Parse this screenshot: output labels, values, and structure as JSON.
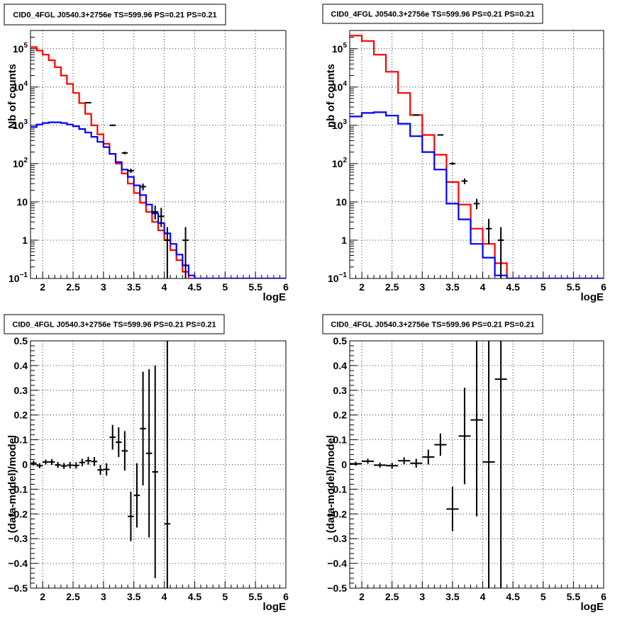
{
  "chart_data": [
    {
      "type": "histogram",
      "title": "CID0_4FGL J0540.3+2756e TS=599.96 PS=0.21 PS=0.21",
      "xlabel": "logE",
      "ylabel": "Nb of counts",
      "xlim": [
        1.8,
        6.0
      ],
      "ylim": [
        0.1,
        300000
      ],
      "yscale": "log",
      "grid": true,
      "xticks": [
        "2",
        "2.5",
        "3",
        "3.5",
        "4",
        "4.5",
        "5",
        "5.5",
        "6"
      ],
      "yticks": [
        {
          "v": 0.1,
          "base": "10",
          "exp": "−1"
        },
        {
          "v": 1,
          "base": "1",
          "exp": ""
        },
        {
          "v": 10,
          "base": "10",
          "exp": ""
        },
        {
          "v": 100,
          "base": "10",
          "exp": "2"
        },
        {
          "v": 1000,
          "base": "10",
          "exp": "3"
        },
        {
          "v": 10000,
          "base": "10",
          "exp": "4"
        },
        {
          "v": 100000,
          "base": "10",
          "exp": "5"
        }
      ],
      "bin_edges": [
        1.8,
        1.9,
        2.0,
        2.1,
        2.2,
        2.3,
        2.4,
        2.5,
        2.6,
        2.7,
        2.8,
        2.9,
        3.0,
        3.1,
        3.2,
        3.3,
        3.4,
        3.5,
        3.6,
        3.7,
        3.8,
        3.9,
        4.0,
        4.1,
        4.2,
        4.3,
        4.4,
        4.5,
        4.6,
        4.7,
        4.8,
        4.9,
        5.0,
        5.1,
        5.2,
        5.3,
        5.4,
        5.5,
        5.6,
        5.7,
        5.8,
        5.9,
        6.0
      ],
      "series": [
        {
          "role": "total_model",
          "color": "#ff0000",
          "values": [
            110000,
            90000,
            70000,
            50000,
            33000,
            20000,
            12000,
            7000,
            3800,
            2000,
            1000,
            580,
            330,
            180,
            100,
            55,
            30,
            17,
            9.5,
            5.5,
            3,
            1.8,
            1.0,
            0.55,
            0.3,
            0.15,
            0.08,
            0.05,
            0.05,
            0.05,
            0.05,
            0.05,
            0.05,
            0.05,
            0.05,
            0.05,
            0.05,
            0.05,
            0.05,
            0.05,
            0.05,
            0.05
          ]
        },
        {
          "role": "component_model",
          "color": "#0000ff",
          "values": [
            900,
            1050,
            1150,
            1200,
            1200,
            1150,
            1050,
            950,
            800,
            650,
            500,
            370,
            270,
            180,
            110,
            70,
            45,
            27,
            15,
            8.5,
            5,
            2.8,
            1.5,
            0.8,
            0.42,
            0.22,
            0.12,
            0.1,
            0.1,
            0.1,
            0.1,
            0.1,
            0.1,
            0.1,
            0.1,
            0.1,
            0.1,
            0.1,
            0.1,
            0.1,
            0.1,
            0.1
          ]
        }
      ],
      "data_points": [
        {
          "x": 2.75,
          "y": 3900,
          "ylo": 3800,
          "yhi": 4000
        },
        {
          "x": 3.15,
          "y": 1000,
          "ylo": 950,
          "yhi": 1050
        },
        {
          "x": 3.35,
          "y": 190,
          "ylo": 175,
          "yhi": 205
        },
        {
          "x": 3.45,
          "y": 65,
          "ylo": 57,
          "yhi": 74
        },
        {
          "x": 3.65,
          "y": 25,
          "ylo": 20,
          "yhi": 30
        },
        {
          "x": 3.85,
          "y": 5.5,
          "ylo": 3.5,
          "yhi": 8
        },
        {
          "x": 3.95,
          "y": 4.2,
          "ylo": 2.2,
          "yhi": 7
        },
        {
          "x": 4.05,
          "y": 1.0,
          "ylo": 0.1,
          "yhi": 2.2
        },
        {
          "x": 4.35,
          "y": 1.0,
          "ylo": 0.1,
          "yhi": 2.2
        }
      ]
    },
    {
      "type": "histogram",
      "title": "CID0_4FGL J0540.3+2756e TS=599.96 PS=0.21 PS=0.21",
      "xlabel": "logE",
      "ylabel": "nb of counts",
      "xlim": [
        1.8,
        6.0
      ],
      "ylim": [
        0.1,
        300000
      ],
      "yscale": "log",
      "grid": true,
      "xticks": [
        "2",
        "2.5",
        "3",
        "3.5",
        "4",
        "4.5",
        "5",
        "5.5",
        "6"
      ],
      "yticks": [
        {
          "v": 0.1,
          "base": "10",
          "exp": "−1"
        },
        {
          "v": 1,
          "base": "1",
          "exp": ""
        },
        {
          "v": 10,
          "base": "10",
          "exp": ""
        },
        {
          "v": 100,
          "base": "10",
          "exp": "2"
        },
        {
          "v": 1000,
          "base": "10",
          "exp": "3"
        },
        {
          "v": 10000,
          "base": "10",
          "exp": "4"
        },
        {
          "v": 100000,
          "base": "10",
          "exp": "5"
        }
      ],
      "bin_edges": [
        1.8,
        2.0,
        2.2,
        2.4,
        2.6,
        2.8,
        3.0,
        3.2,
        3.4,
        3.6,
        3.8,
        4.0,
        4.2,
        4.4,
        4.6,
        4.8,
        5.0,
        5.2,
        5.4,
        5.6,
        5.8,
        6.0
      ],
      "series": [
        {
          "role": "total_model",
          "color": "#ff0000",
          "values": [
            220000,
            160000,
            70000,
            25000,
            7000,
            1850,
            560,
            170,
            33,
            8.5,
            2,
            0.8,
            0.25,
            0.09,
            0.05,
            0.05,
            0.05,
            0.05,
            0.05,
            0.05,
            0.05
          ]
        },
        {
          "role": "component_model",
          "color": "#0000ff",
          "values": [
            1700,
            2100,
            2200,
            1800,
            1100,
            520,
            200,
            70,
            9,
            3.5,
            0.8,
            0.35,
            0.12,
            0.1,
            0.1,
            0.1,
            0.1,
            0.1,
            0.1,
            0.1,
            0.1
          ]
        }
      ],
      "data_points": [
        {
          "x": 2.9,
          "y": 1850,
          "ylo": 1800,
          "yhi": 1900
        },
        {
          "x": 3.3,
          "y": 560,
          "ylo": 540,
          "yhi": 580
        },
        {
          "x": 3.5,
          "y": 100,
          "ylo": 92,
          "yhi": 108
        },
        {
          "x": 3.7,
          "y": 35,
          "ylo": 29,
          "yhi": 41
        },
        {
          "x": 3.9,
          "y": 9,
          "ylo": 6.5,
          "yhi": 12
        },
        {
          "x": 4.1,
          "y": 2.0,
          "ylo": 0.8,
          "yhi": 3.6
        },
        {
          "x": 4.3,
          "y": 1.0,
          "ylo": 0.1,
          "yhi": 2.2
        }
      ]
    },
    {
      "type": "scatter",
      "title": "CID0_4FGL J0540.3+2756e TS=599.96 PS=0.21 PS=0.21",
      "xlabel": "logE",
      "ylabel": "(data-model)/model",
      "xlim": [
        1.8,
        6.0
      ],
      "ylim": [
        -0.5,
        0.5
      ],
      "yscale": "linear",
      "grid": true,
      "xticks": [
        "2",
        "2.5",
        "3",
        "3.5",
        "4",
        "4.5",
        "5",
        "5.5",
        "6"
      ],
      "yticks": [
        "−0.5",
        "−0.4",
        "−0.3",
        "−0.2",
        "−0.1",
        "0",
        "0.1",
        "0.2",
        "0.3",
        "0.4",
        "0.5"
      ],
      "xhalf": 0.05,
      "data_points": [
        {
          "x": 1.85,
          "y": 0.005,
          "e": 0.01
        },
        {
          "x": 1.95,
          "y": -0.005,
          "e": 0.01
        },
        {
          "x": 2.05,
          "y": 0.01,
          "e": 0.01
        },
        {
          "x": 2.15,
          "y": 0.01,
          "e": 0.012
        },
        {
          "x": 2.25,
          "y": -0.002,
          "e": 0.012
        },
        {
          "x": 2.35,
          "y": -0.006,
          "e": 0.012
        },
        {
          "x": 2.45,
          "y": -0.003,
          "e": 0.013
        },
        {
          "x": 2.55,
          "y": -0.004,
          "e": 0.013
        },
        {
          "x": 2.65,
          "y": 0.008,
          "e": 0.015
        },
        {
          "x": 2.75,
          "y": 0.015,
          "e": 0.016
        },
        {
          "x": 2.85,
          "y": 0.012,
          "e": 0.018
        },
        {
          "x": 2.95,
          "y": -0.022,
          "e": 0.02
        },
        {
          "x": 3.05,
          "y": -0.02,
          "e": 0.025
        },
        {
          "x": 3.15,
          "y": 0.11,
          "e": 0.05
        },
        {
          "x": 3.25,
          "y": 0.09,
          "e": 0.06
        },
        {
          "x": 3.35,
          "y": 0.055,
          "e": 0.08
        },
        {
          "x": 3.45,
          "y": -0.21,
          "e": 0.1
        },
        {
          "x": 3.55,
          "y": -0.125,
          "e": 0.13
        },
        {
          "x": 3.65,
          "y": 0.145,
          "e": 0.23
        },
        {
          "x": 3.75,
          "y": 0.045,
          "e": 0.34
        },
        {
          "x": 3.85,
          "y": -0.03,
          "e": 0.43
        },
        {
          "x": 4.05,
          "y": -0.24,
          "e": 0.8
        }
      ]
    },
    {
      "type": "scatter",
      "title": "CID0_4FGL J0540.3+2756e TS=599.96 PS=0.21 PS=0.21",
      "xlabel": "logE",
      "ylabel": "(data-model)/model",
      "xlim": [
        1.8,
        6.0
      ],
      "ylim": [
        -0.5,
        0.5
      ],
      "yscale": "linear",
      "grid": true,
      "xticks": [
        "2",
        "2.5",
        "3",
        "3.5",
        "4",
        "4.5",
        "5",
        "5.5",
        "6"
      ],
      "yticks": [
        "−0.5",
        "−0.4",
        "−0.3",
        "−0.2",
        "−0.1",
        "0",
        "0.1",
        "0.2",
        "0.3",
        "0.4",
        "0.5"
      ],
      "xhalf": 0.1,
      "data_points": [
        {
          "x": 1.9,
          "y": 0.003,
          "e": 0.008
        },
        {
          "x": 2.1,
          "y": 0.013,
          "e": 0.01
        },
        {
          "x": 2.3,
          "y": -0.003,
          "e": 0.01
        },
        {
          "x": 2.5,
          "y": -0.005,
          "e": 0.012
        },
        {
          "x": 2.7,
          "y": 0.015,
          "e": 0.014
        },
        {
          "x": 2.9,
          "y": 0.005,
          "e": 0.018
        },
        {
          "x": 3.1,
          "y": 0.03,
          "e": 0.03
        },
        {
          "x": 3.3,
          "y": 0.08,
          "e": 0.045
        },
        {
          "x": 3.5,
          "y": -0.18,
          "e": 0.09
        },
        {
          "x": 3.7,
          "y": 0.115,
          "e": 0.195
        },
        {
          "x": 3.9,
          "y": 0.18,
          "e": 0.39
        },
        {
          "x": 4.1,
          "y": 0.01,
          "e": 0.8
        },
        {
          "x": 4.3,
          "y": 0.345,
          "e": 0.9
        }
      ]
    }
  ]
}
